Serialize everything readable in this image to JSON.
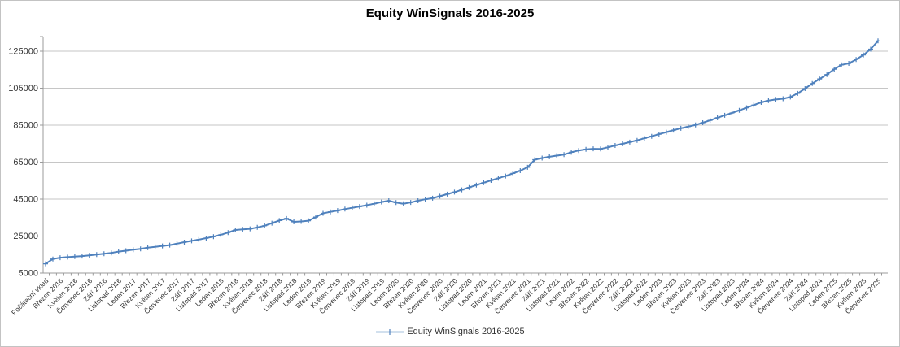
{
  "title": "Equity WinSignals 2016-2025",
  "legend": {
    "label": "Equity WinSignals 2016-2025"
  },
  "colors": {
    "series": "#4F81BD",
    "gridline": "#C6C6C6",
    "axis": "#9B9B9B",
    "tick_label": "#333333",
    "title": "#000000",
    "background": "#FFFFFF",
    "border": "#C3C3C3"
  },
  "chart_data": {
    "type": "line",
    "title": "Equity WinSignals 2016-2025",
    "series_name": "Equity WinSignals 2016-2025",
    "marker": "plus",
    "grid": "horizontal",
    "legend_position": "bottom",
    "ylim": [
      5000,
      133000
    ],
    "y_ticks": [
      5000,
      25000,
      45000,
      65000,
      85000,
      105000,
      125000
    ],
    "x_label_every_n_points": 2,
    "x_tick_labels": [
      "Počáteční vklad",
      "Březen 2016",
      "Květen 2016",
      "Červenec 2016",
      "Září 2016",
      "Listopad 2016",
      "Leden 2017",
      "Březen 2017",
      "Květen 2017",
      "Červenec 2017",
      "Září 2017",
      "Listopad 2017",
      "Leden 2018",
      "Březen 2018",
      "Květen 2018",
      "Červenec 2018",
      "Září 2018",
      "Listopad 2018",
      "Leden 2019",
      "Březen 2019",
      "Květen 2019",
      "Červenec 2019",
      "Září 2019",
      "Listopad 2019",
      "Leden 2020",
      "Březen 2020",
      "Květen 2020",
      "Červenec 2020",
      "Září 2020",
      "Listopad 2020",
      "Leden 2021",
      "Březen 2021",
      "Květen 2021",
      "Červenec 2021",
      "Září 2021",
      "Listopad 2021",
      "Leden 2022",
      "Březen 2022",
      "Květen 2022",
      "Červenec 2022",
      "Září 2022",
      "Listopad 2022",
      "Leden 2023",
      "Březen 2023",
      "Květen 2023",
      "Červenec 2023",
      "Září 2023",
      "Listopad 2023",
      "Leden 2024",
      "Březen 2024",
      "Květen 2024",
      "Červenec 2024",
      "Září 2024",
      "Listopad 2024",
      "Leden 2025",
      "Březen 2025",
      "Květen 2025",
      "Červenec 2025"
    ],
    "values": [
      10000,
      12600,
      13300,
      13600,
      13900,
      14200,
      14600,
      15000,
      15400,
      15900,
      16600,
      17100,
      17600,
      18100,
      18700,
      19200,
      19700,
      20100,
      20900,
      21700,
      22400,
      23100,
      23900,
      24700,
      25700,
      26900,
      28300,
      28600,
      28900,
      29700,
      30600,
      32000,
      33400,
      34500,
      32700,
      32900,
      33300,
      35300,
      37300,
      38100,
      38800,
      39600,
      40300,
      41000,
      41700,
      42500,
      43400,
      44100,
      43100,
      42500,
      43200,
      44100,
      44900,
      45500,
      46600,
      47700,
      48800,
      50000,
      51300,
      52600,
      53900,
      55100,
      56300,
      57500,
      58900,
      60400,
      62200,
      66300,
      67200,
      67900,
      68500,
      69100,
      70300,
      71300,
      71900,
      72200,
      72100,
      73000,
      74000,
      74900,
      75800,
      76800,
      77900,
      79000,
      80100,
      81200,
      82300,
      83300,
      84200,
      85100,
      86300,
      87600,
      89000,
      90300,
      91600,
      93000,
      94400,
      95900,
      97300,
      98300,
      98900,
      99300,
      100200,
      102200,
      104800,
      107500,
      110000,
      112400,
      115300,
      117600,
      118400,
      120500,
      123000,
      126100,
      130600
    ]
  }
}
